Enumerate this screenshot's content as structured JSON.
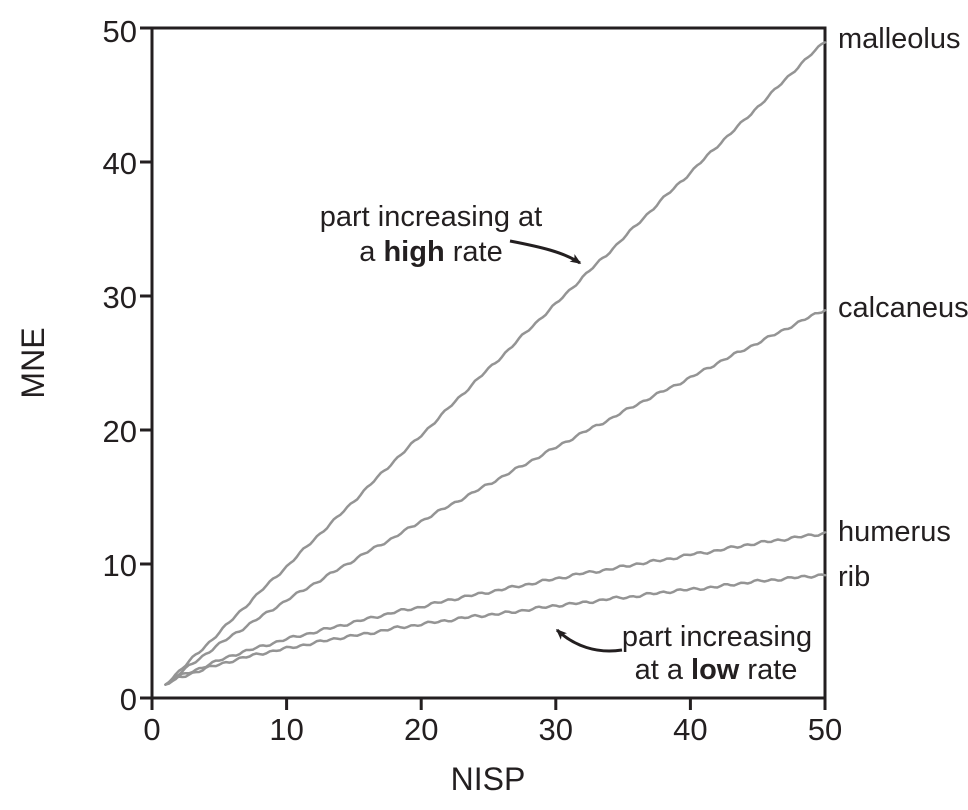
{
  "figure": {
    "background": "#ffffff",
    "axis_color": "#231f20",
    "text_color": "#231f20",
    "series_line_color": "#949494"
  },
  "chart_data": {
    "type": "line",
    "title": "",
    "xlabel": "NISP",
    "ylabel": "MNE",
    "xlim": [
      0,
      50
    ],
    "ylim": [
      0,
      50
    ],
    "grid": false,
    "legend_position": "right-edge-labels",
    "x_ticks": [
      "0",
      "10",
      "20",
      "30",
      "40",
      "50"
    ],
    "y_ticks": [
      "0",
      "10",
      "20",
      "30",
      "40",
      "50"
    ],
    "series": [
      {
        "name": "malleolus",
        "x": [
          1,
          2,
          4,
          6,
          8,
          10,
          12,
          14,
          16,
          18,
          20,
          22,
          24,
          26,
          28,
          30,
          32,
          34,
          36,
          38,
          40,
          42,
          44,
          46,
          48,
          50
        ],
        "y": [
          1.0,
          2.0,
          3.9,
          5.9,
          7.9,
          9.8,
          11.8,
          13.7,
          15.7,
          17.7,
          19.6,
          21.6,
          23.6,
          25.5,
          27.5,
          29.4,
          31.4,
          33.3,
          35.3,
          37.3,
          39.2,
          41.2,
          43.1,
          45.1,
          47.1,
          49.0
        ]
      },
      {
        "name": "calcaneus",
        "x": [
          1,
          2,
          4,
          6,
          8,
          10,
          12,
          14,
          16,
          18,
          20,
          22,
          24,
          26,
          28,
          30,
          32,
          34,
          36,
          38,
          40,
          42,
          44,
          46,
          48,
          50
        ],
        "y": [
          1.0,
          1.8,
          3.3,
          4.7,
          6.0,
          7.3,
          8.5,
          9.7,
          10.9,
          12.0,
          13.2,
          14.3,
          15.4,
          16.5,
          17.6,
          18.7,
          19.8,
          20.8,
          21.9,
          22.9,
          23.9,
          25.0,
          26.0,
          27.0,
          28.0,
          29.0
        ]
      },
      {
        "name": "humerus",
        "x": [
          1,
          2,
          4,
          6,
          8,
          10,
          12,
          14,
          16,
          18,
          20,
          22,
          24,
          26,
          28,
          30,
          32,
          34,
          36,
          38,
          40,
          42,
          44,
          46,
          48,
          50
        ],
        "y": [
          1.0,
          1.6,
          2.4,
          3.2,
          3.8,
          4.4,
          4.9,
          5.4,
          5.9,
          6.4,
          6.8,
          7.3,
          7.7,
          8.1,
          8.5,
          8.9,
          9.3,
          9.6,
          10.0,
          10.3,
          10.7,
          11.0,
          11.4,
          11.7,
          12.0,
          12.3
        ]
      },
      {
        "name": "rib",
        "x": [
          1,
          2,
          4,
          6,
          8,
          10,
          12,
          14,
          16,
          18,
          20,
          22,
          24,
          26,
          28,
          30,
          32,
          34,
          36,
          38,
          40,
          42,
          44,
          46,
          48,
          50
        ],
        "y": [
          1.0,
          1.5,
          2.2,
          2.8,
          3.3,
          3.7,
          4.1,
          4.5,
          4.8,
          5.2,
          5.5,
          5.8,
          6.1,
          6.3,
          6.6,
          6.9,
          7.1,
          7.4,
          7.6,
          7.9,
          8.1,
          8.3,
          8.6,
          8.8,
          9.0,
          9.2
        ]
      }
    ],
    "annotations": [
      {
        "id": "high-rate",
        "line1": "part increasing at",
        "line2_prefix": "a",
        "line2_bold": "high",
        "line2_suffix": "rate",
        "points_to_series": "malleolus"
      },
      {
        "id": "low-rate",
        "line1": "part increasing",
        "line2_prefix": "at a",
        "line2_bold": "low",
        "line2_suffix": "rate",
        "points_to_series": "rib"
      }
    ]
  }
}
